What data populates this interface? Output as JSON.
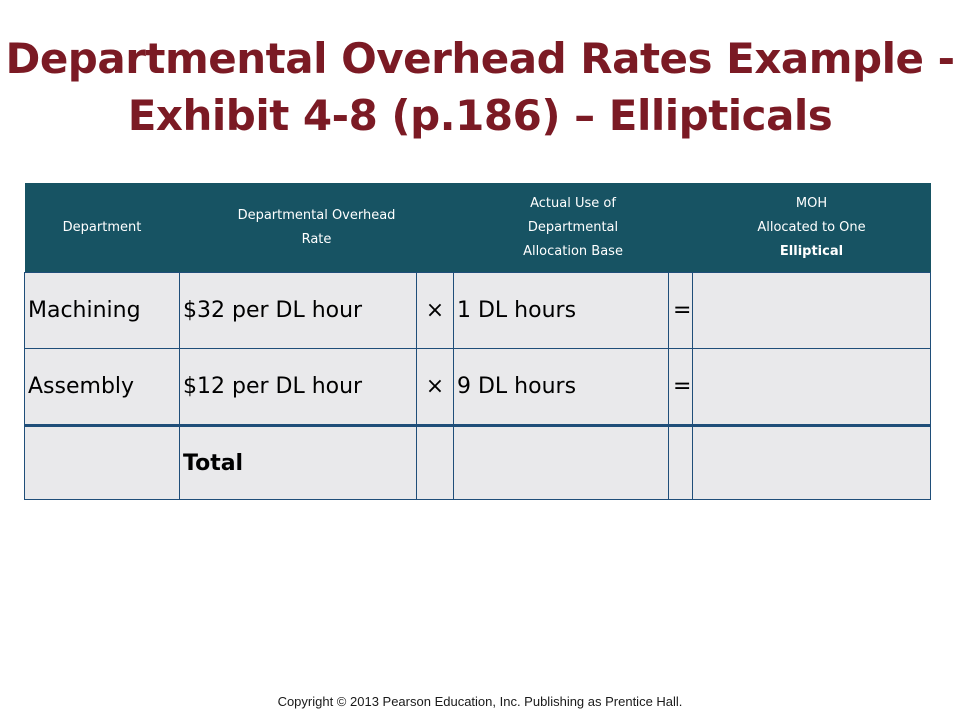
{
  "title": {
    "line1": "Departmental Overhead Rates Example -",
    "line2": "Exhibit 4-8 (p.186) – Ellipticals"
  },
  "table": {
    "headers": {
      "department": "Department",
      "rate_line1": "Departmental Overhead",
      "rate_line2": "Rate",
      "base_line1": "Actual Use of",
      "base_line2": "Departmental",
      "base_line3": "Allocation Base",
      "moh_line1": "MOH",
      "moh_line2": "Allocated  to One",
      "moh_line3": "Elliptical"
    },
    "rows": [
      {
        "department": "Machining",
        "rate": "$32 per DL hour",
        "operator": "×",
        "base": "1  DL hours",
        "equals": "=",
        "moh": ""
      },
      {
        "department": "Assembly",
        "rate": "$12 per DL hour",
        "operator": "×",
        "base": "9  DL hours",
        "equals": "=",
        "moh": ""
      }
    ],
    "total_label": "Total"
  },
  "footer": {
    "copyright": "Copyright © 2013 Pearson Education, Inc. Publishing as Prentice Hall."
  }
}
